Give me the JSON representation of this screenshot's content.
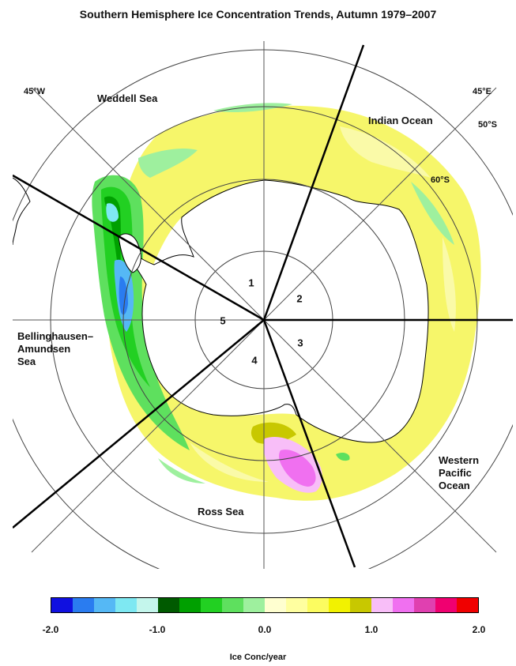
{
  "title": "Southern Hemisphere Ice Concentration Trends, Autumn 1979–2007",
  "regions": {
    "weddell": "Weddell Sea",
    "indian": "Indian Ocean",
    "bellingshausen": [
      "Bellinghausen–",
      "Amundsen",
      "Sea"
    ],
    "ross": "Ross Sea",
    "western_pacific": [
      "Western",
      "Pacific",
      "Ocean"
    ]
  },
  "coords": {
    "w45": "45°W",
    "e45": "45°E",
    "s50": "50°S",
    "s60": "60°S"
  },
  "sectors": [
    "1",
    "2",
    "3",
    "4",
    "5"
  ],
  "colorbar": {
    "label": "Ice Conc/year",
    "ticks": [
      "-2.0",
      "-1.0",
      "0.0",
      "1.0",
      "2.0"
    ],
    "colors": [
      "#1010e0",
      "#2a7cf0",
      "#55b8f5",
      "#7ee8f2",
      "#c4f6ec",
      "#005a00",
      "#00a000",
      "#22d022",
      "#5ee05e",
      "#9ef09e",
      "#ffffd0",
      "#ffffa0",
      "#fcfc60",
      "#f2f200",
      "#c8c800",
      "#f8bef8",
      "#f070f0",
      "#e040b0",
      "#f00070",
      "#f00000"
    ]
  }
}
